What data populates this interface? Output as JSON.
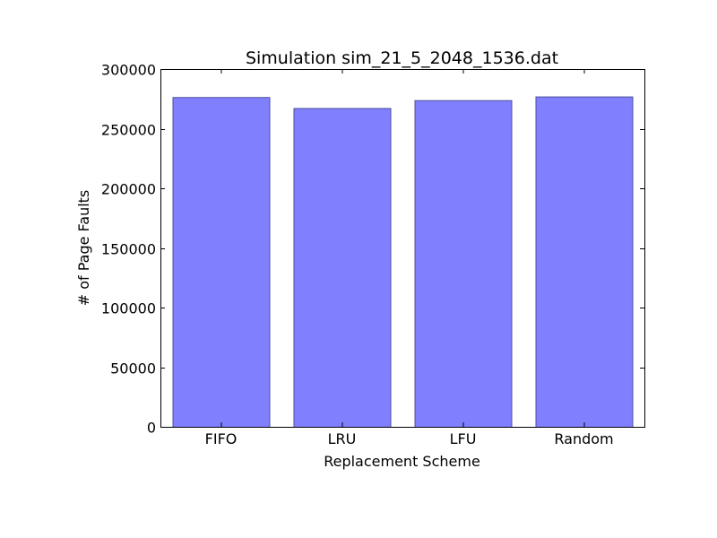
{
  "chart_data": {
    "type": "bar",
    "title": "Simulation sim_21_5_2048_1536.dat",
    "xlabel": "Replacement Scheme",
    "ylabel": "# of Page Faults",
    "categories": [
      "FIFO",
      "LRU",
      "LFU",
      "Random"
    ],
    "values": [
      276500,
      267300,
      273900,
      277000
    ],
    "ylim": [
      0,
      300000
    ],
    "yticks": [
      0,
      50000,
      100000,
      150000,
      200000,
      250000,
      300000
    ],
    "grid": false,
    "legend": "none",
    "colors": {
      "bar_fill": "#8080ff",
      "bar_edge": "#4d4d99",
      "axis": "#000000"
    }
  }
}
